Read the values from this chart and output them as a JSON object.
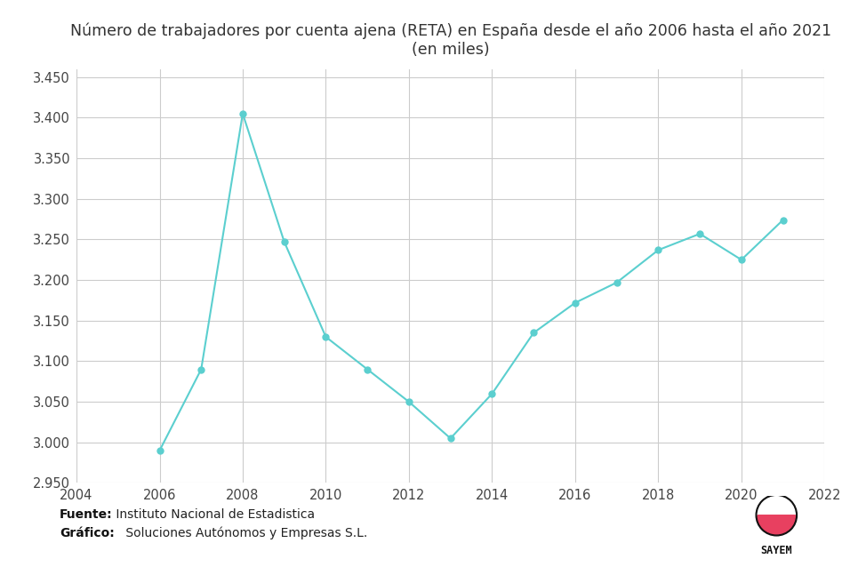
{
  "title_line1": "Número de trabajadores por cuenta ajena (RETA) en España desde el año 2006 hasta el año 2021",
  "title_line2": "(en miles)",
  "years": [
    2006,
    2007,
    2008,
    2009,
    2010,
    2011,
    2012,
    2013,
    2014,
    2015,
    2016,
    2017,
    2018,
    2019,
    2020,
    2021
  ],
  "values": [
    2.99,
    3.09,
    3.405,
    3.247,
    3.13,
    3.09,
    3.05,
    3.005,
    3.06,
    3.135,
    3.172,
    3.197,
    3.237,
    3.257,
    3.225,
    3.274
  ],
  "line_color": "#5BCFCF",
  "marker_color": "#5BCFCF",
  "background_color": "#ffffff",
  "grid_color": "#cccccc",
  "xlim": [
    2004,
    2022
  ],
  "ylim": [
    2.95,
    3.46
  ],
  "yticks": [
    2.95,
    3.0,
    3.05,
    3.1,
    3.15,
    3.2,
    3.25,
    3.3,
    3.35,
    3.4,
    3.45
  ],
  "ytick_labels": [
    "2.950",
    "3.000",
    "3.050",
    "3.100",
    "3.150",
    "3.200",
    "3.250",
    "3.300",
    "3.350",
    "3.400",
    "3.450"
  ],
  "xticks": [
    2004,
    2006,
    2008,
    2010,
    2012,
    2014,
    2016,
    2018,
    2020,
    2022
  ],
  "title_fontsize": 12.5,
  "tick_fontsize": 10.5,
  "source_bold": "Fuente:",
  "source_text": " Instituto Nacional de Estadistica",
  "grafico_bold": "Gráfico:",
  "grafico_text": " Soluciones Autónomos y Empresas S.L.",
  "footer_fontsize": 10,
  "logo_top_color": "#ffffff",
  "logo_bottom_color": "#e84060",
  "logo_border_color": "#111111",
  "sayem_text": "SAYEM"
}
